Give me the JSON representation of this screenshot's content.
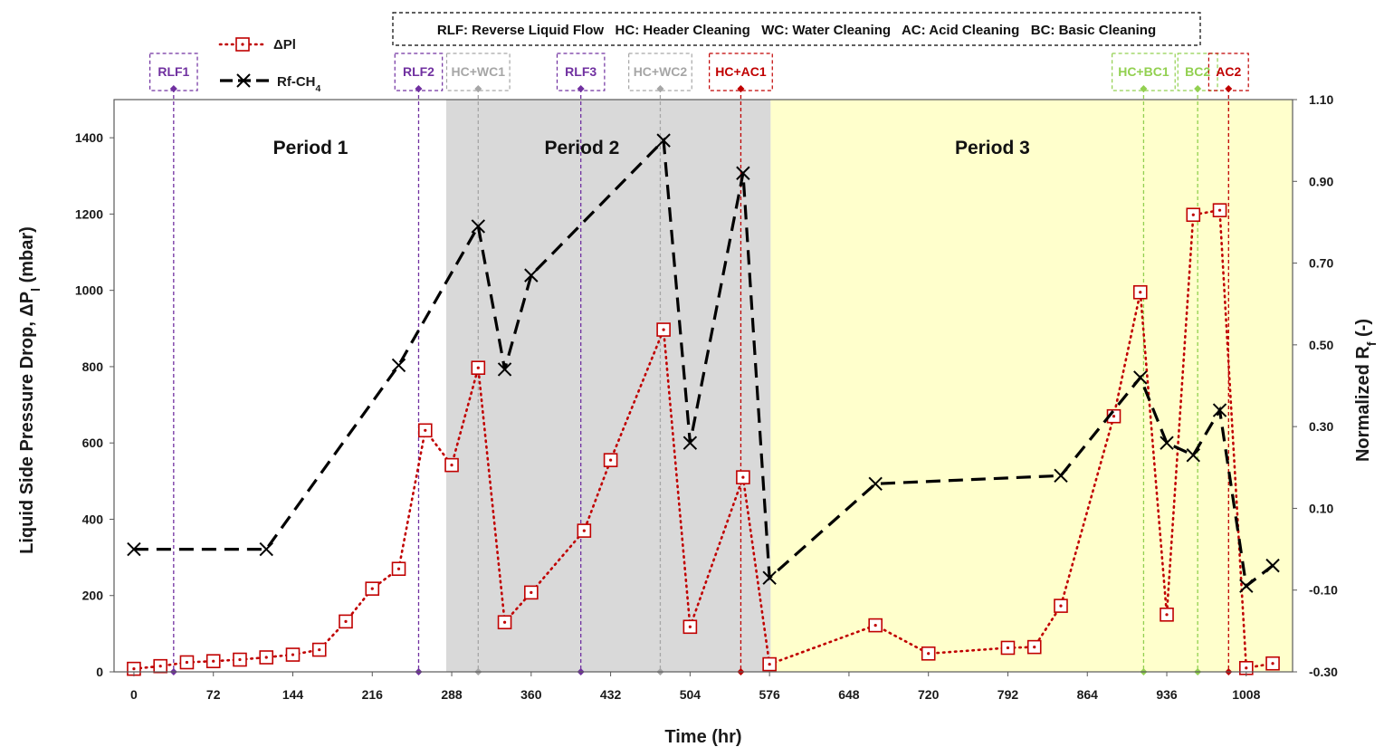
{
  "chart_data": {
    "type": "line",
    "xlabel": "Time (hr)",
    "ylabel": "Liquid Side Pressure Drop, ΔPl (mbar)",
    "ylabel_parts": [
      "Liquid Side Pressure Drop, ΔP",
      "l",
      " (mbar)"
    ],
    "y2label": "Normalized Rf (-)",
    "y2label_parts": [
      "Normalized R",
      "f",
      " (-)"
    ],
    "xlim": [
      -18,
      1050
    ],
    "ylim": [
      0,
      1500
    ],
    "y2lim": [
      -0.3,
      1.1
    ],
    "x_ticks": [
      "0",
      "72",
      "144",
      "216",
      "288",
      "360",
      "432",
      "504",
      "576",
      "648",
      "720",
      "792",
      "864",
      "936",
      "1008"
    ],
    "x_tick_values": [
      0,
      72,
      144,
      216,
      288,
      360,
      432,
      504,
      576,
      648,
      720,
      792,
      864,
      936,
      1008
    ],
    "y_ticks": [
      "0",
      "200",
      "400",
      "600",
      "800",
      "1000",
      "1200",
      "1400"
    ],
    "y_tick_values": [
      0,
      200,
      400,
      600,
      800,
      1000,
      1200,
      1400
    ],
    "y2_ticks": [
      "-0.30",
      "-0.10",
      "0.10",
      "0.30",
      "0.50",
      "0.70",
      "0.90",
      "1.10"
    ],
    "y2_tick_values": [
      -0.3,
      -0.1,
      0.1,
      0.3,
      0.5,
      0.7,
      0.9,
      1.1
    ],
    "grid": false,
    "legend_position": "top-left",
    "series": [
      {
        "name": "ΔPl",
        "axis": "left",
        "color": "#c00000",
        "marker": "square",
        "line": "dotted",
        "x": [
          0,
          24,
          48,
          72,
          96,
          120,
          144,
          168,
          192,
          216,
          240,
          264,
          288,
          312,
          336,
          360,
          408,
          432,
          480,
          504,
          552,
          576,
          672,
          720,
          792,
          816,
          840,
          888,
          912,
          936,
          960,
          984,
          1008,
          1032
        ],
        "y": [
          8,
          15,
          25,
          28,
          32,
          38,
          45,
          58,
          132,
          218,
          270,
          633,
          542,
          797,
          130,
          208,
          370,
          555,
          897,
          118,
          510,
          20,
          122,
          48,
          63,
          65,
          173,
          670,
          995,
          150,
          1198,
          1210,
          10,
          22
        ]
      },
      {
        "name": "Rf-CH4",
        "name_parts": [
          "Rf-CH",
          "4"
        ],
        "axis": "right",
        "color": "#000000",
        "marker": "x",
        "line": "dashed",
        "x": [
          0,
          120,
          240,
          312,
          336,
          360,
          480,
          504,
          552,
          576,
          672,
          840,
          912,
          936,
          960,
          984,
          1008,
          1032
        ],
        "y": [
          0.0,
          0.0,
          0.45,
          0.79,
          0.44,
          0.67,
          1.0,
          0.26,
          0.92,
          -0.07,
          0.16,
          0.18,
          0.42,
          0.26,
          0.23,
          0.34,
          -0.09,
          -0.04
        ]
      }
    ],
    "periods": [
      {
        "label": "Period 1",
        "x_start": -18,
        "x_end": 283,
        "color": "#ffffff",
        "label_x": 160
      },
      {
        "label": "Period 2",
        "x_start": 283,
        "x_end": 577,
        "color": "#d9d9d9",
        "label_x": 406
      },
      {
        "label": "Period 3",
        "x_start": 577,
        "x_end": 1050,
        "color": "#ffffcc",
        "label_x": 778
      }
    ],
    "events": [
      {
        "label": "RLF1",
        "x": 36,
        "color": "#7030a0"
      },
      {
        "label": "RLF2",
        "x": 258,
        "color": "#7030a0"
      },
      {
        "label": "HC+WC1",
        "x": 312,
        "color": "#a6a6a6"
      },
      {
        "label": "RLF3",
        "x": 405,
        "color": "#7030a0"
      },
      {
        "label": "HC+WC2",
        "x": 477,
        "color": "#a6a6a6"
      },
      {
        "label": "HC+AC1",
        "x": 550,
        "color": "#c00000"
      },
      {
        "label": "HC+BC1",
        "x": 915,
        "color": "#92d050"
      },
      {
        "label": "BC2",
        "x": 964,
        "color": "#92d050"
      },
      {
        "label": "AC2",
        "x": 992,
        "color": "#c00000"
      }
    ],
    "abbreviations": "RLF: Reverse Liquid Flow   HC: Header Cleaning   WC: Water Cleaning   AC: Acid Cleaning   BC: Basic Cleaning"
  }
}
